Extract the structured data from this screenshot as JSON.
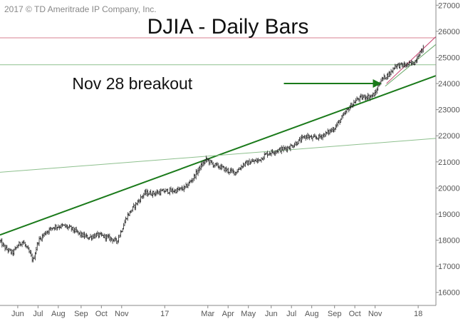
{
  "copyright": "2017 © TD Ameritrade IP Company, Inc.",
  "chart_data": {
    "type": "bar",
    "title": "DJIA - Daily Bars",
    "xlabel": "",
    "ylabel": "",
    "x_range": [
      2016.35,
      2018.07
    ],
    "ylim": [
      15500,
      27200
    ],
    "grid": false,
    "y_axis_side": "right",
    "y_ticks": [
      16000,
      17000,
      18000,
      19000,
      20000,
      21000,
      22000,
      23000,
      24000,
      25000,
      26000,
      27000
    ],
    "y_tick_labels": [
      "16000",
      "17000",
      "18000",
      "19000",
      "20000",
      "21000",
      "22000",
      "23000",
      "24000",
      "25000",
      "26000",
      "27000"
    ],
    "x_ticks": [
      {
        "label": "Jun",
        "x": 2016.42
      },
      {
        "label": "Jul",
        "x": 2016.5
      },
      {
        "label": "Aug",
        "x": 2016.58
      },
      {
        "label": "Sep",
        "x": 2016.67
      },
      {
        "label": "Oct",
        "x": 2016.75
      },
      {
        "label": "Nov",
        "x": 2016.83
      },
      {
        "label": "17",
        "x": 2017.0
      },
      {
        "label": "Mar",
        "x": 2017.17
      },
      {
        "label": "Apr",
        "x": 2017.25
      },
      {
        "label": "May",
        "x": 2017.33
      },
      {
        "label": "Jun",
        "x": 2017.42
      },
      {
        "label": "Jul",
        "x": 2017.5
      },
      {
        "label": "Aug",
        "x": 2017.58
      },
      {
        "label": "Sep",
        "x": 2017.67
      },
      {
        "label": "Oct",
        "x": 2017.75
      },
      {
        "label": "Nov",
        "x": 2017.83
      },
      {
        "label": "18",
        "x": 2018.0
      }
    ],
    "price_path": [
      [
        2016.35,
        17950
      ],
      [
        2016.37,
        17700
      ],
      [
        2016.4,
        17500
      ],
      [
        2016.42,
        17800
      ],
      [
        2016.44,
        17950
      ],
      [
        2016.47,
        17450
      ],
      [
        2016.48,
        17200
      ],
      [
        2016.5,
        17950
      ],
      [
        2016.53,
        18300
      ],
      [
        2016.56,
        18500
      ],
      [
        2016.6,
        18550
      ],
      [
        2016.63,
        18450
      ],
      [
        2016.67,
        18200
      ],
      [
        2016.7,
        18100
      ],
      [
        2016.73,
        18200
      ],
      [
        2016.76,
        18150
      ],
      [
        2016.79,
        18050
      ],
      [
        2016.81,
        17950
      ],
      [
        2016.83,
        18400
      ],
      [
        2016.85,
        18900
      ],
      [
        2016.88,
        19300
      ],
      [
        2016.92,
        19800
      ],
      [
        2016.96,
        19800
      ],
      [
        2017.0,
        19880
      ],
      [
        2017.04,
        19890
      ],
      [
        2017.08,
        20000
      ],
      [
        2017.11,
        20350
      ],
      [
        2017.14,
        20800
      ],
      [
        2017.165,
        21100
      ],
      [
        2017.19,
        20900
      ],
      [
        2017.22,
        20800
      ],
      [
        2017.25,
        20650
      ],
      [
        2017.28,
        20600
      ],
      [
        2017.31,
        20900
      ],
      [
        2017.34,
        21000
      ],
      [
        2017.37,
        21050
      ],
      [
        2017.4,
        21300
      ],
      [
        2017.43,
        21400
      ],
      [
        2017.47,
        21500
      ],
      [
        2017.5,
        21600
      ],
      [
        2017.53,
        21800
      ],
      [
        2017.56,
        22000
      ],
      [
        2017.58,
        21900
      ],
      [
        2017.61,
        21950
      ],
      [
        2017.64,
        22100
      ],
      [
        2017.67,
        22300
      ],
      [
        2017.7,
        22700
      ],
      [
        2017.73,
        23100
      ],
      [
        2017.76,
        23400
      ],
      [
        2017.79,
        23500
      ],
      [
        2017.81,
        23500
      ],
      [
        2017.83,
        23600
      ],
      [
        2017.85,
        24100
      ],
      [
        2017.875,
        24300
      ],
      [
        2017.89,
        24400
      ],
      [
        2017.91,
        24700
      ],
      [
        2017.95,
        24700
      ],
      [
        2017.985,
        24800
      ],
      [
        2018.0,
        25100
      ],
      [
        2018.02,
        25350
      ]
    ],
    "lines": [
      {
        "color": "#1a7a1a",
        "points": [
          [
            2016.35,
            18200
          ],
          [
            2018.07,
            24300
          ]
        ]
      },
      {
        "color": "#8ec08e",
        "points": [
          [
            2016.35,
            20600
          ],
          [
            2018.07,
            21900
          ]
        ]
      },
      {
        "color": "#8ec08e",
        "points": [
          [
            2016.35,
            24720
          ],
          [
            2018.07,
            24720
          ]
        ]
      },
      {
        "color": "#d98090",
        "points": [
          [
            2016.35,
            25750
          ],
          [
            2018.07,
            25750
          ]
        ]
      },
      {
        "color": "#6aa96a",
        "points": [
          [
            2017.87,
            23900
          ],
          [
            2018.07,
            25500
          ]
        ]
      },
      {
        "color": "#c43c6a",
        "points": [
          [
            2017.875,
            24000
          ],
          [
            2018.07,
            25800
          ]
        ]
      }
    ],
    "annotations": [
      {
        "text": "Nov 28 breakout",
        "x": 2016.635,
        "y": 24000,
        "arrow_from": [
          2017.47,
          24000
        ],
        "arrow_to": [
          2017.855,
          24000
        ],
        "arrow_color": "#1a7a1a"
      }
    ]
  }
}
